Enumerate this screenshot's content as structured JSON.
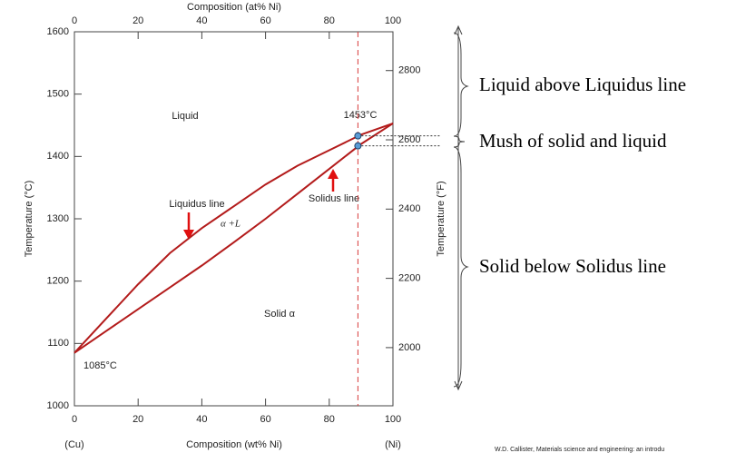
{
  "chart_data": {
    "type": "line",
    "title": "Composition (at% Ni)",
    "x_label": "Composition (wt% Ni)",
    "y_label": "Temperature (°C)",
    "y2_label": "Temperature (°F)",
    "x_end_labels": [
      "(Cu)",
      "(Ni)"
    ],
    "x": [
      0,
      10,
      20,
      30,
      40,
      50,
      60,
      70,
      80,
      90,
      100
    ],
    "series": [
      {
        "name": "Liquidus line",
        "color": "#b31b1b",
        "values": [
          1085,
          1140,
          1195,
          1245,
          1285,
          1320,
          1355,
          1385,
          1410,
          1435,
          1453
        ]
      },
      {
        "name": "Solidus line",
        "color": "#b31b1b",
        "values": [
          1085,
          1120,
          1155,
          1190,
          1225,
          1262,
          1300,
          1340,
          1380,
          1420,
          1453
        ]
      }
    ],
    "xlim": [
      0,
      100
    ],
    "xticks": [
      0,
      20,
      40,
      60,
      80,
      100
    ],
    "x2lim": [
      0,
      100
    ],
    "x2ticks": [
      0,
      20,
      40,
      60,
      80,
      100
    ],
    "ylim": [
      1000,
      1600
    ],
    "yticks": [
      1000,
      1100,
      1200,
      1300,
      1400,
      1500,
      1600
    ],
    "y2lim": [
      1832,
      2912
    ],
    "y2ticks": [
      2000,
      2200,
      2400,
      2600,
      2800
    ],
    "composition_line": 89,
    "points": [
      {
        "x": 89,
        "y": 1433
      },
      {
        "x": 89,
        "y": 1417
      }
    ],
    "annotations": [
      "Liquid",
      "1453°C",
      "α +L",
      "Solid α",
      "1085°C"
    ],
    "notes": [
      "Liquid above Liquidus line",
      "Mush of solid and liquid",
      "Solid below Solidus line"
    ],
    "credit": "W.D. Callister, Materials science and engineering: an introdu"
  }
}
